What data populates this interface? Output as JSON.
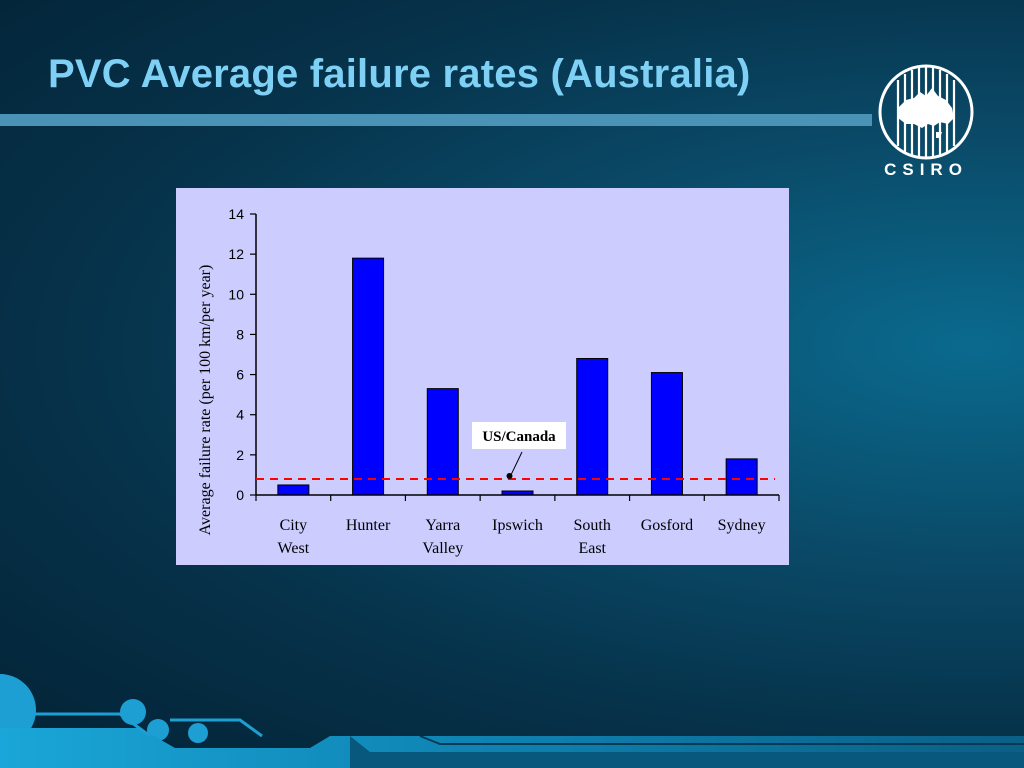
{
  "slide": {
    "title": "PVC Average failure rates (Australia)",
    "logo_text": "CSIRO",
    "colors": {
      "title": "#7fd0f5",
      "rule": "#4a93b7",
      "panel": "#ccccff",
      "bar": "#0000ff",
      "reference_line": "#ff0000"
    }
  },
  "chart_data": {
    "type": "bar",
    "categories": [
      [
        "City",
        "West"
      ],
      [
        "Hunter"
      ],
      [
        "Yarra",
        "Valley"
      ],
      [
        "Ipswich"
      ],
      [
        "South",
        "East"
      ],
      [
        "Gosford"
      ],
      [
        "Sydney"
      ]
    ],
    "values": [
      0.5,
      11.8,
      5.3,
      0.2,
      6.8,
      6.1,
      1.8
    ],
    "ylabel": "Average failure rate (per 100 km/per year)",
    "xlabel": "",
    "ylim": [
      0,
      14
    ],
    "yticks": [
      0,
      2,
      4,
      6,
      8,
      10,
      12,
      14
    ],
    "grid": false,
    "legend": "none",
    "reference_line": {
      "label": "US/Canada",
      "value": 0.8,
      "style": "dashed"
    }
  }
}
